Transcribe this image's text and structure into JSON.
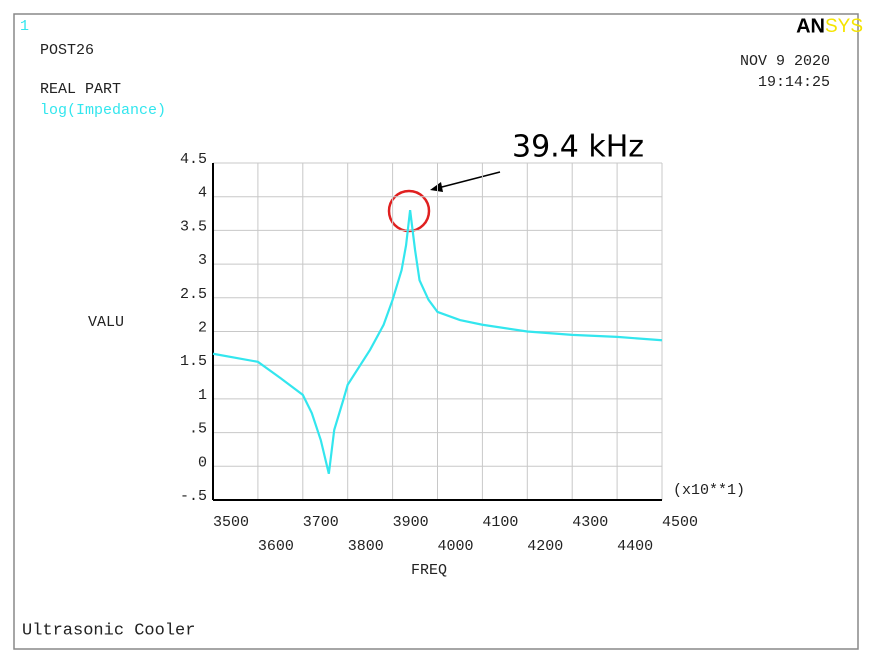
{
  "window_number": "1",
  "header": {
    "program": "POST26",
    "part": "REAL PART",
    "date": "NOV  9 2020",
    "time": "19:14:25",
    "logo_an": "AN",
    "logo_sys": "SYS"
  },
  "footer": "Ultrasonic Cooler",
  "chart_data": {
    "type": "line",
    "title": "log(Impedance)",
    "annotation": "39.4 kHz",
    "y_label": "VALU",
    "x_label": "FREQ",
    "x_multiplier": "(x10**1)",
    "x": [
      3500,
      3600,
      3650,
      3700,
      3720,
      3740,
      3758,
      3770,
      3790,
      3800,
      3850,
      3880,
      3900,
      3920,
      3930,
      3939,
      3950,
      3960,
      3980,
      4000,
      4050,
      4100,
      4200,
      4300,
      4400,
      4500
    ],
    "series": [
      {
        "name": "log(Impedance)",
        "color": "#33e6ee",
        "values": [
          1.67,
          1.55,
          1.31,
          1.06,
          0.79,
          0.39,
          -0.11,
          0.54,
          0.98,
          1.21,
          1.73,
          2.1,
          2.47,
          2.91,
          3.28,
          3.8,
          3.21,
          2.76,
          2.47,
          2.29,
          2.17,
          2.1,
          2.0,
          1.95,
          1.92,
          1.87
        ]
      }
    ],
    "xlim": [
      3500,
      4500
    ],
    "xticks": [
      3500,
      3600,
      3700,
      3800,
      3900,
      4000,
      4100,
      4200,
      4300,
      4400,
      4500
    ],
    "ylim": [
      -0.5,
      4.5
    ],
    "yticks": [
      {
        "value": -0.5,
        "label": "-.5"
      },
      0,
      {
        "value": 0.5,
        "label": ".5"
      },
      1,
      1.5,
      2,
      2.5,
      3,
      3.5,
      4,
      4.5
    ],
    "grid": true
  }
}
